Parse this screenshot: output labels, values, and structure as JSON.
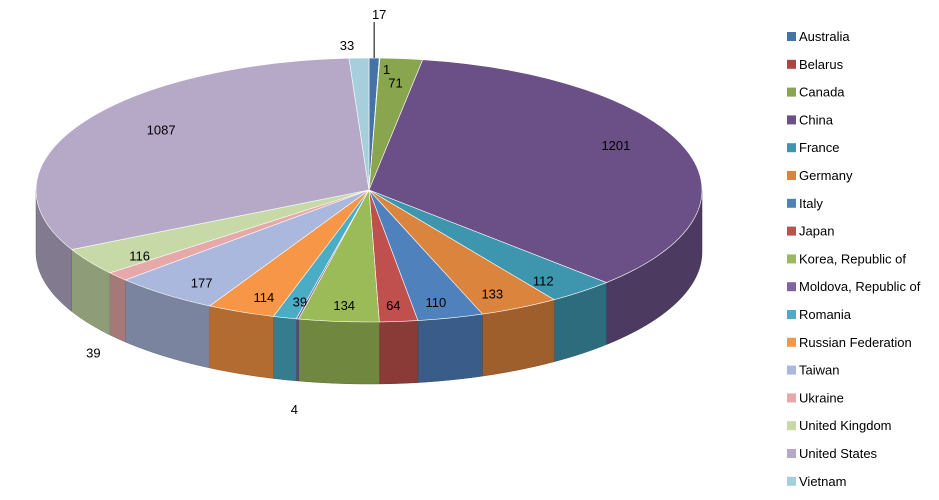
{
  "chart_data": {
    "type": "pie",
    "style": "3d-pie",
    "legend_position": "right",
    "categories": [
      "Australia",
      "Belarus",
      "Canada",
      "China",
      "France",
      "Germany",
      "Italy",
      "Japan",
      "Korea, Republic of",
      "Moldova, Republic of",
      "Romania",
      "Russian Federation",
      "Taiwan",
      "Ukraine",
      "United Kingdom",
      "United States",
      "Vietnam"
    ],
    "values": [
      17,
      1,
      71,
      1201,
      112,
      133,
      110,
      64,
      134,
      4,
      39,
      114,
      177,
      39,
      116,
      1087,
      33
    ],
    "data_labels": [
      "17",
      "1",
      "71",
      "1201",
      "112",
      "133",
      "110",
      "64",
      "134",
      "4",
      "39",
      "114",
      "177",
      "39",
      "116",
      "1087",
      "33"
    ],
    "colors": [
      "#4572A7",
      "#AA4643",
      "#89A54E",
      "#6A5087",
      "#3D96AE",
      "#DB843D",
      "#4F81BD",
      "#C0504D",
      "#9BBB59",
      "#8064A2",
      "#4BACC6",
      "#F79646",
      "#A9B8DC",
      "#E6A8A8",
      "#C6D9A6",
      "#B5A9C7",
      "#A6CFDB"
    ]
  }
}
